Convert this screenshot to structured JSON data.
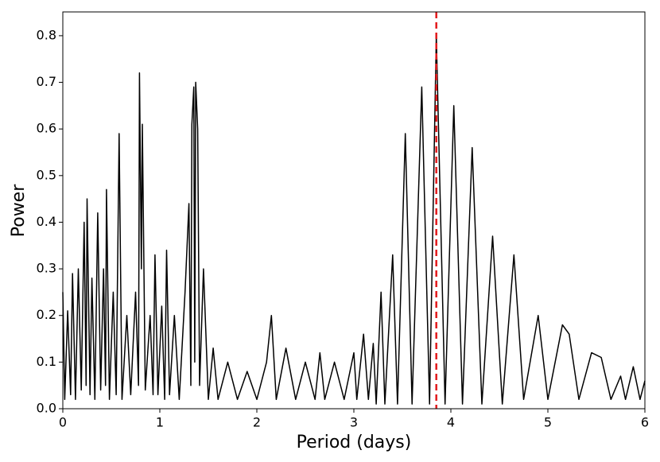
{
  "chart_data": {
    "type": "line",
    "x_label": "Period (days)",
    "y_label": "Power",
    "x": [
      0,
      0.02,
      0.05,
      0.08,
      0.1,
      0.13,
      0.16,
      0.19,
      0.22,
      0.24,
      0.25,
      0.28,
      0.3,
      0.33,
      0.36,
      0.39,
      0.42,
      0.44,
      0.45,
      0.48,
      0.52,
      0.55,
      0.58,
      0.61,
      0.66,
      0.7,
      0.75,
      0.78,
      0.79,
      0.81,
      0.82,
      0.85,
      0.9,
      0.93,
      0.95,
      0.98,
      1.02,
      1.05,
      1.07,
      1.1,
      1.15,
      1.2,
      1.26,
      1.3,
      1.32,
      1.33,
      1.35,
      1.36,
      1.37,
      1.39,
      1.41,
      1.45,
      1.5,
      1.55,
      1.6,
      1.7,
      1.8,
      1.9,
      2.0,
      2.1,
      2.15,
      2.2,
      2.3,
      2.4,
      2.5,
      2.6,
      2.65,
      2.7,
      2.8,
      2.9,
      3.0,
      3.03,
      3.1,
      3.15,
      3.2,
      3.23,
      3.28,
      3.32,
      3.4,
      3.45,
      3.53,
      3.6,
      3.7,
      3.78,
      3.85,
      3.94,
      4.03,
      4.12,
      4.22,
      4.32,
      4.43,
      4.53,
      4.65,
      4.75,
      4.9,
      5.0,
      5.15,
      5.22,
      5.32,
      5.45,
      5.55,
      5.65,
      5.75,
      5.8,
      5.88,
      5.95,
      6.0
    ],
    "series": [
      {
        "color": "#000000",
        "values": [
          0.25,
          0.02,
          0.21,
          0.03,
          0.29,
          0.02,
          0.3,
          0.04,
          0.4,
          0.05,
          0.45,
          0.03,
          0.28,
          0.02,
          0.42,
          0.04,
          0.3,
          0.05,
          0.47,
          0.02,
          0.25,
          0.03,
          0.59,
          0.02,
          0.2,
          0.03,
          0.25,
          0.05,
          0.72,
          0.3,
          0.61,
          0.04,
          0.2,
          0.03,
          0.33,
          0.03,
          0.22,
          0.02,
          0.34,
          0.03,
          0.2,
          0.02,
          0.25,
          0.44,
          0.05,
          0.61,
          0.69,
          0.1,
          0.7,
          0.6,
          0.05,
          0.3,
          0.02,
          0.13,
          0.02,
          0.1,
          0.02,
          0.08,
          0.02,
          0.1,
          0.2,
          0.02,
          0.13,
          0.02,
          0.1,
          0.02,
          0.12,
          0.02,
          0.1,
          0.02,
          0.12,
          0.02,
          0.16,
          0.02,
          0.14,
          0.01,
          0.25,
          0.01,
          0.33,
          0.01,
          0.59,
          0.01,
          0.69,
          0.01,
          0.8,
          0.01,
          0.65,
          0.01,
          0.56,
          0.01,
          0.37,
          0.01,
          0.33,
          0.02,
          0.2,
          0.02,
          0.18,
          0.16,
          0.02,
          0.12,
          0.11,
          0.02,
          0.07,
          0.02,
          0.09,
          0.02,
          0.06
        ]
      }
    ],
    "vline": {
      "x": 3.85,
      "color": "#e31a1c"
    },
    "xlim": [
      0,
      6
    ],
    "xticks": [
      0,
      1,
      2,
      3,
      4,
      5,
      6
    ],
    "ylim": [
      0,
      0.851
    ],
    "yticks": [
      {
        "value": 0,
        "label": "0.0"
      },
      {
        "value": 0.1,
        "label": "0.1"
      },
      {
        "value": 0.2,
        "label": "0.2"
      },
      {
        "value": 0.3,
        "label": "0.3"
      },
      {
        "value": 0.4,
        "label": "0.4"
      },
      {
        "value": 0.5,
        "label": "0.5"
      },
      {
        "value": 0.6,
        "label": "0.6"
      },
      {
        "value": 0.7,
        "label": "0.7"
      },
      {
        "value": 0.8,
        "label": "0.8"
      }
    ]
  }
}
